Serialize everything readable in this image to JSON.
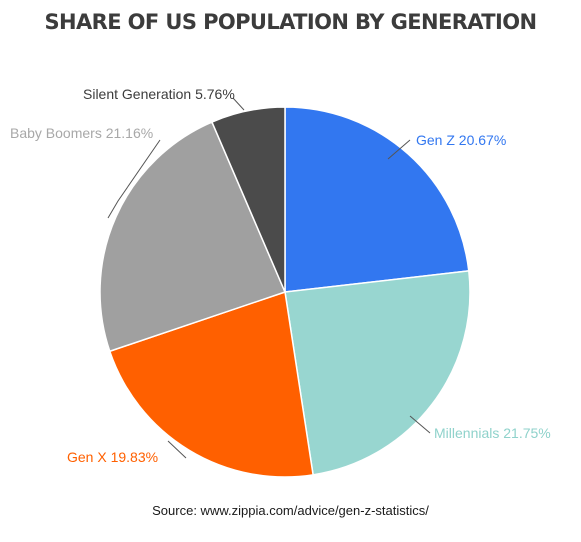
{
  "chart_data": {
    "type": "pie",
    "title": "SHARE OF US POPULATION BY GENERATION",
    "slices": [
      {
        "label": "Gen Z",
        "value": 20.67,
        "display": "Gen Z 20.67%",
        "color": "#3277f0",
        "label_color": "#3277f0"
      },
      {
        "label": "Millennials",
        "value": 21.75,
        "display": "Millennials 21.75%",
        "color": "#98d6d0",
        "label_color": "#8fd2cb"
      },
      {
        "label": "Gen X",
        "value": 19.83,
        "display": "Gen X 19.83%",
        "color": "#ff6000",
        "label_color": "#ff6000"
      },
      {
        "label": "Baby Boomers",
        "value": 21.16,
        "display": "Baby Boomers 21.16%",
        "color": "#a0a0a0",
        "label_color": "#a8a8a8"
      },
      {
        "label": "Silent Generation",
        "value": 5.76,
        "display": "Silent Generation 5.76%",
        "color": "#4b4b4b",
        "label_color": "#3c3c3c"
      }
    ]
  },
  "source": "Source: www.zippia.com/advice/gen-z-statistics/"
}
